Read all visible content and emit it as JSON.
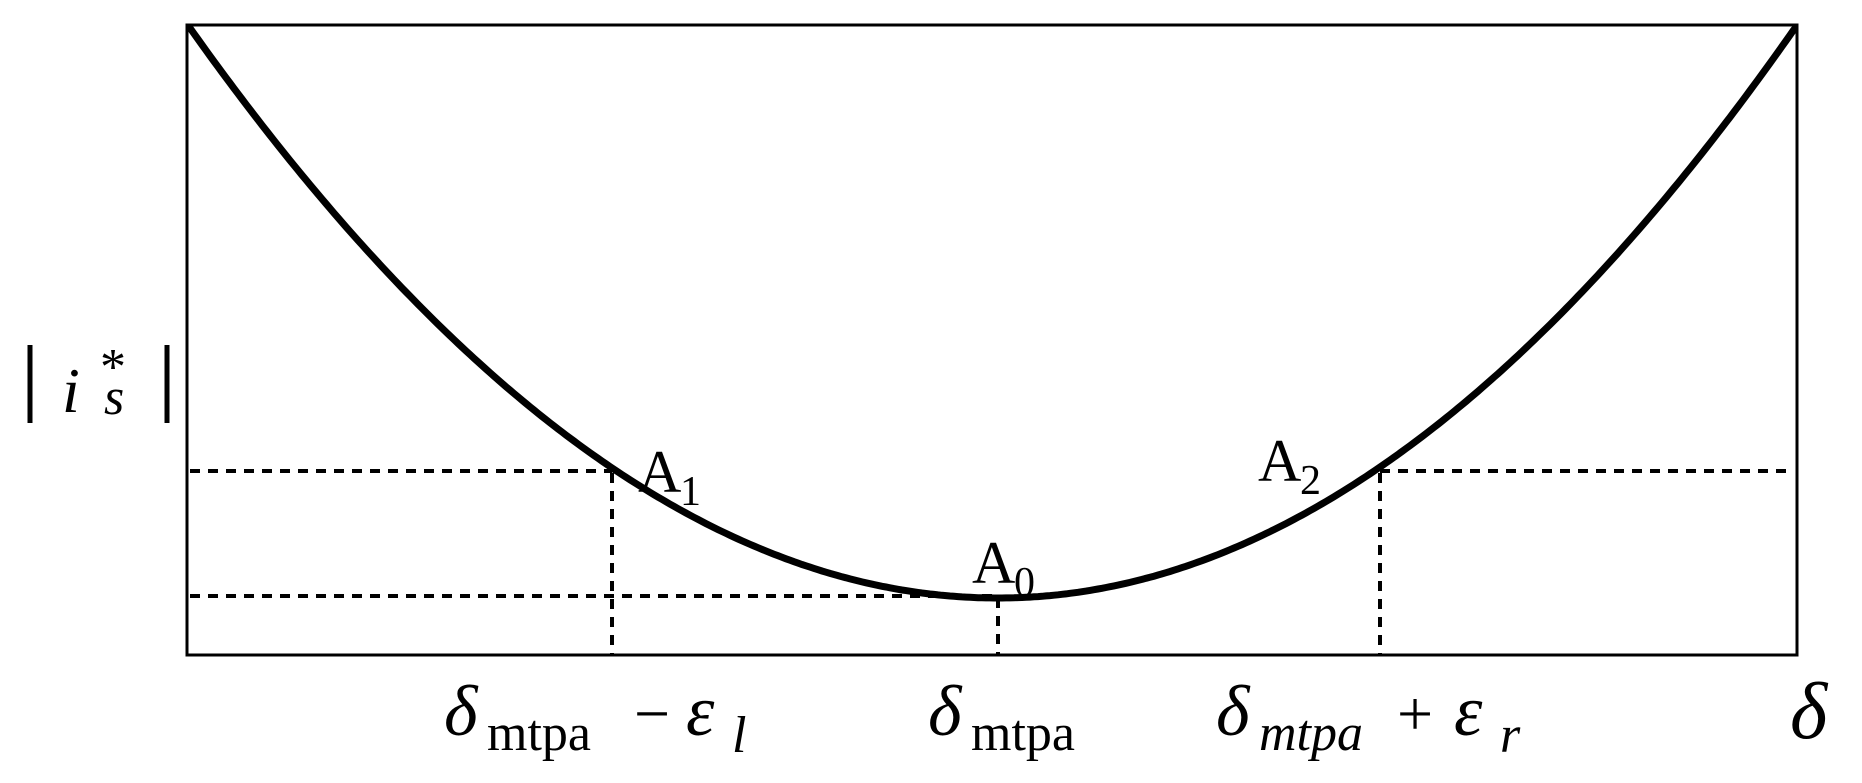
{
  "figure": {
    "y_axis_label": {
      "base": "i",
      "superscript": "*",
      "subscript": "s"
    },
    "x_axis_label": "δ",
    "points": {
      "a0": {
        "base": "A",
        "sub": "0"
      },
      "a1": {
        "base": "A",
        "sub": "1"
      },
      "a2": {
        "base": "A",
        "sub": "2"
      }
    },
    "ticks": {
      "left": {
        "base": "δ",
        "sub": "mtpa",
        "op": "−",
        "eps": "ε",
        "eps_sub": "l"
      },
      "center": {
        "base": "δ",
        "sub": "mtpa"
      },
      "right": {
        "base": "δ",
        "sub": "mtpa",
        "op": "+",
        "eps": "ε",
        "eps_sub": "r"
      }
    },
    "colors": {
      "curve": "#000000",
      "frame": "#000000",
      "guides": "#000000",
      "background": "#ffffff"
    }
  }
}
